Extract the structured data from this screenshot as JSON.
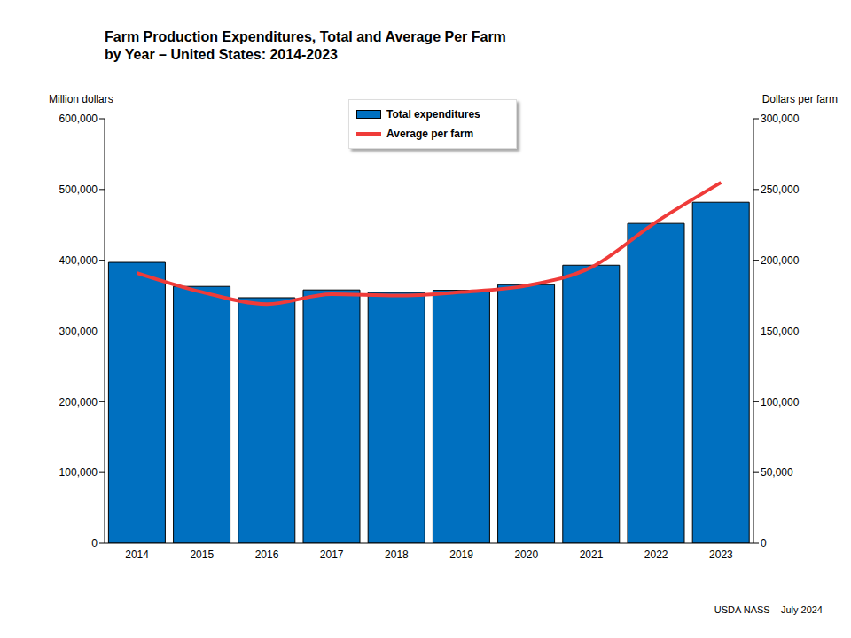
{
  "chart_data": {
    "type": "bar",
    "title": "Farm Production Expenditures, Total and Average Per Farm",
    "subtitle": "by Year – United States: 2014-2023",
    "y_label": "Million dollars",
    "y2_label": "Dollars per farm",
    "annotations": [
      "USDA NASS – July 2024"
    ],
    "categories": [
      "2014",
      "2015",
      "2016",
      "2017",
      "2018",
      "2019",
      "2020",
      "2021",
      "2022",
      "2023"
    ],
    "series": [
      {
        "name": "Total expenditures",
        "type": "bar",
        "color": "#0070c0",
        "axis": "y",
        "values": [
          397000,
          363000,
          347000,
          358000,
          354500,
          357500,
          365500,
          393000,
          452000,
          482000
        ]
      },
      {
        "name": "Average per farm",
        "type": "line",
        "color": "#ef3b39",
        "axis": "y2",
        "values": [
          191000,
          177500,
          169000,
          176000,
          175000,
          177500,
          182000,
          195000,
          227000,
          255000
        ]
      }
    ],
    "ylim": [
      0,
      600000
    ],
    "yticks": [
      0,
      {
        "value": 100000,
        "label": "100,000"
      },
      {
        "value": 200000,
        "label": "200,000"
      },
      {
        "value": 300000,
        "label": "300,000"
      },
      {
        "value": 400000,
        "label": "400,000"
      },
      {
        "value": 500000,
        "label": "500,000"
      },
      {
        "value": 600000,
        "label": "600,000"
      }
    ],
    "y2lim": [
      0,
      300000
    ],
    "y2ticks": [
      0,
      {
        "value": 50000,
        "label": "50,000"
      },
      {
        "value": 100000,
        "label": "100,000"
      },
      {
        "value": 150000,
        "label": "150,000"
      },
      {
        "value": 200000,
        "label": "200,000"
      },
      {
        "value": 250000,
        "label": "250,000"
      },
      {
        "value": 300000,
        "label": "300,000"
      }
    ],
    "grid": false,
    "legend": "top"
  }
}
